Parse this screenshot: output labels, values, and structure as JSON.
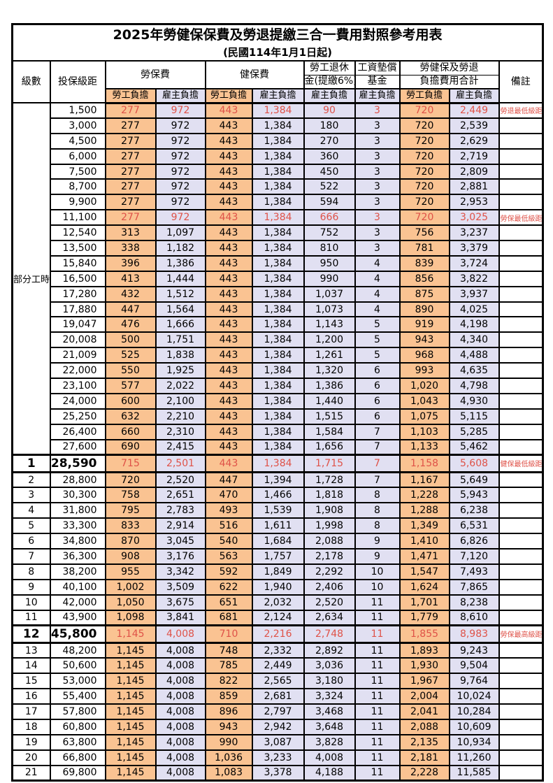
{
  "title": "2025年勞健保保費及勞退提繳三合一費用對照參考用表",
  "subtitle": "(民國114年1月1日起)",
  "columns": {
    "level": "級數",
    "bracket": "投保級距",
    "labor_insurance": "勞保費",
    "health_insurance": "健保費",
    "pension_line1": "勞工退休",
    "pension_line2": "金(提繳6%)",
    "wage_fund_line1": "工資墊償",
    "wage_fund_line2": "基金",
    "total_line1": "勞健保及勞退",
    "total_line2": "負擔費用合計",
    "remark": "備註",
    "employee_share": "勞工負擔",
    "employer_share": "雇主負擔"
  },
  "part_time_label": "部分工時",
  "part_time_rowspan": 23,
  "colors": {
    "employee_bg": "#FAC392",
    "employer_bg": "#E1E0F2",
    "highlight_text": "#DF5248"
  },
  "rows": [
    {
      "level": "",
      "bracket": "1,500",
      "values": [
        "277",
        "972",
        "443",
        "1,384",
        "90",
        "3",
        "720",
        "2,449"
      ],
      "note": "勞退最低級距",
      "highlight": true,
      "major": false
    },
    {
      "level": "",
      "bracket": "3,000",
      "values": [
        "277",
        "972",
        "443",
        "1,384",
        "180",
        "3",
        "720",
        "2,539"
      ],
      "note": "",
      "highlight": false,
      "major": false
    },
    {
      "level": "",
      "bracket": "4,500",
      "values": [
        "277",
        "972",
        "443",
        "1,384",
        "270",
        "3",
        "720",
        "2,629"
      ],
      "note": "",
      "highlight": false,
      "major": false
    },
    {
      "level": "",
      "bracket": "6,000",
      "values": [
        "277",
        "972",
        "443",
        "1,384",
        "360",
        "3",
        "720",
        "2,719"
      ],
      "note": "",
      "highlight": false,
      "major": false
    },
    {
      "level": "",
      "bracket": "7,500",
      "values": [
        "277",
        "972",
        "443",
        "1,384",
        "450",
        "3",
        "720",
        "2,809"
      ],
      "note": "",
      "highlight": false,
      "major": false
    },
    {
      "level": "",
      "bracket": "8,700",
      "values": [
        "277",
        "972",
        "443",
        "1,384",
        "522",
        "3",
        "720",
        "2,881"
      ],
      "note": "",
      "highlight": false,
      "major": false
    },
    {
      "level": "",
      "bracket": "9,900",
      "values": [
        "277",
        "972",
        "443",
        "1,384",
        "594",
        "3",
        "720",
        "2,953"
      ],
      "note": "",
      "highlight": false,
      "major": false
    },
    {
      "level": "",
      "bracket": "11,100",
      "values": [
        "277",
        "972",
        "443",
        "1,384",
        "666",
        "3",
        "720",
        "3,025"
      ],
      "note": "勞保最低級距",
      "highlight": true,
      "major": false
    },
    {
      "level": "",
      "bracket": "12,540",
      "values": [
        "313",
        "1,097",
        "443",
        "1,384",
        "752",
        "3",
        "756",
        "3,237"
      ],
      "note": "",
      "highlight": false,
      "major": false
    },
    {
      "level": "",
      "bracket": "13,500",
      "values": [
        "338",
        "1,182",
        "443",
        "1,384",
        "810",
        "3",
        "781",
        "3,379"
      ],
      "note": "",
      "highlight": false,
      "major": false
    },
    {
      "level": "",
      "bracket": "15,840",
      "values": [
        "396",
        "1,386",
        "443",
        "1,384",
        "950",
        "4",
        "839",
        "3,724"
      ],
      "note": "",
      "highlight": false,
      "major": false
    },
    {
      "level": "",
      "bracket": "16,500",
      "values": [
        "413",
        "1,444",
        "443",
        "1,384",
        "990",
        "4",
        "856",
        "3,822"
      ],
      "note": "",
      "highlight": false,
      "major": false
    },
    {
      "level": "",
      "bracket": "17,280",
      "values": [
        "432",
        "1,512",
        "443",
        "1,384",
        "1,037",
        "4",
        "875",
        "3,937"
      ],
      "note": "",
      "highlight": false,
      "major": false
    },
    {
      "level": "",
      "bracket": "17,880",
      "values": [
        "447",
        "1,564",
        "443",
        "1,384",
        "1,073",
        "4",
        "890",
        "4,025"
      ],
      "note": "",
      "highlight": false,
      "major": false
    },
    {
      "level": "",
      "bracket": "19,047",
      "values": [
        "476",
        "1,666",
        "443",
        "1,384",
        "1,143",
        "5",
        "919",
        "4,198"
      ],
      "note": "",
      "highlight": false,
      "major": false
    },
    {
      "level": "",
      "bracket": "20,008",
      "values": [
        "500",
        "1,751",
        "443",
        "1,384",
        "1,200",
        "5",
        "943",
        "4,340"
      ],
      "note": "",
      "highlight": false,
      "major": false
    },
    {
      "level": "",
      "bracket": "21,009",
      "values": [
        "525",
        "1,838",
        "443",
        "1,384",
        "1,261",
        "5",
        "968",
        "4,488"
      ],
      "note": "",
      "highlight": false,
      "major": false
    },
    {
      "level": "",
      "bracket": "22,000",
      "values": [
        "550",
        "1,925",
        "443",
        "1,384",
        "1,320",
        "6",
        "993",
        "4,635"
      ],
      "note": "",
      "highlight": false,
      "major": false
    },
    {
      "level": "",
      "bracket": "23,100",
      "values": [
        "577",
        "2,022",
        "443",
        "1,384",
        "1,386",
        "6",
        "1,020",
        "4,798"
      ],
      "note": "",
      "highlight": false,
      "major": false
    },
    {
      "level": "",
      "bracket": "24,000",
      "values": [
        "600",
        "2,100",
        "443",
        "1,384",
        "1,440",
        "6",
        "1,043",
        "4,930"
      ],
      "note": "",
      "highlight": false,
      "major": false
    },
    {
      "level": "",
      "bracket": "25,250",
      "values": [
        "632",
        "2,210",
        "443",
        "1,384",
        "1,515",
        "6",
        "1,075",
        "5,115"
      ],
      "note": "",
      "highlight": false,
      "major": false
    },
    {
      "level": "",
      "bracket": "26,400",
      "values": [
        "660",
        "2,310",
        "443",
        "1,384",
        "1,584",
        "7",
        "1,103",
        "5,285"
      ],
      "note": "",
      "highlight": false,
      "major": false
    },
    {
      "level": "",
      "bracket": "27,600",
      "values": [
        "690",
        "2,415",
        "443",
        "1,384",
        "1,656",
        "7",
        "1,133",
        "5,462"
      ],
      "note": "",
      "highlight": false,
      "major": false
    },
    {
      "level": "1",
      "bracket": "28,590",
      "values": [
        "715",
        "2,501",
        "443",
        "1,384",
        "1,715",
        "7",
        "1,158",
        "5,608"
      ],
      "note": "健保最低級距",
      "highlight": true,
      "major": true
    },
    {
      "level": "2",
      "bracket": "28,800",
      "values": [
        "720",
        "2,520",
        "447",
        "1,394",
        "1,728",
        "7",
        "1,167",
        "5,649"
      ],
      "note": "",
      "highlight": false,
      "major": false
    },
    {
      "level": "3",
      "bracket": "30,300",
      "values": [
        "758",
        "2,651",
        "470",
        "1,466",
        "1,818",
        "8",
        "1,228",
        "5,943"
      ],
      "note": "",
      "highlight": false,
      "major": false
    },
    {
      "level": "4",
      "bracket": "31,800",
      "values": [
        "795",
        "2,783",
        "493",
        "1,539",
        "1,908",
        "8",
        "1,288",
        "6,238"
      ],
      "note": "",
      "highlight": false,
      "major": false
    },
    {
      "level": "5",
      "bracket": "33,300",
      "values": [
        "833",
        "2,914",
        "516",
        "1,611",
        "1,998",
        "8",
        "1,349",
        "6,531"
      ],
      "note": "",
      "highlight": false,
      "major": false
    },
    {
      "level": "6",
      "bracket": "34,800",
      "values": [
        "870",
        "3,045",
        "540",
        "1,684",
        "2,088",
        "9",
        "1,410",
        "6,826"
      ],
      "note": "",
      "highlight": false,
      "major": false
    },
    {
      "level": "7",
      "bracket": "36,300",
      "values": [
        "908",
        "3,176",
        "563",
        "1,757",
        "2,178",
        "9",
        "1,471",
        "7,120"
      ],
      "note": "",
      "highlight": false,
      "major": false
    },
    {
      "level": "8",
      "bracket": "38,200",
      "values": [
        "955",
        "3,342",
        "592",
        "1,849",
        "2,292",
        "10",
        "1,547",
        "7,493"
      ],
      "note": "",
      "highlight": false,
      "major": false
    },
    {
      "level": "9",
      "bracket": "40,100",
      "values": [
        "1,002",
        "3,509",
        "622",
        "1,940",
        "2,406",
        "10",
        "1,624",
        "7,865"
      ],
      "note": "",
      "highlight": false,
      "major": false
    },
    {
      "level": "10",
      "bracket": "42,000",
      "values": [
        "1,050",
        "3,675",
        "651",
        "2,032",
        "2,520",
        "11",
        "1,701",
        "8,238"
      ],
      "note": "",
      "highlight": false,
      "major": false
    },
    {
      "level": "11",
      "bracket": "43,900",
      "values": [
        "1,098",
        "3,841",
        "681",
        "2,124",
        "2,634",
        "11",
        "1,779",
        "8,610"
      ],
      "note": "",
      "highlight": false,
      "major": false
    },
    {
      "level": "12",
      "bracket": "45,800",
      "values": [
        "1,145",
        "4,008",
        "710",
        "2,216",
        "2,748",
        "11",
        "1,855",
        "8,983"
      ],
      "note": "勞保最高級距",
      "highlight": true,
      "major": true
    },
    {
      "level": "13",
      "bracket": "48,200",
      "values": [
        "1,145",
        "4,008",
        "748",
        "2,332",
        "2,892",
        "11",
        "1,893",
        "9,243"
      ],
      "note": "",
      "highlight": false,
      "major": false
    },
    {
      "level": "14",
      "bracket": "50,600",
      "values": [
        "1,145",
        "4,008",
        "785",
        "2,449",
        "3,036",
        "11",
        "1,930",
        "9,504"
      ],
      "note": "",
      "highlight": false,
      "major": false
    },
    {
      "level": "15",
      "bracket": "53,000",
      "values": [
        "1,145",
        "4,008",
        "822",
        "2,565",
        "3,180",
        "11",
        "1,967",
        "9,764"
      ],
      "note": "",
      "highlight": false,
      "major": false
    },
    {
      "level": "16",
      "bracket": "55,400",
      "values": [
        "1,145",
        "4,008",
        "859",
        "2,681",
        "3,324",
        "11",
        "2,004",
        "10,024"
      ],
      "note": "",
      "highlight": false,
      "major": false
    },
    {
      "level": "17",
      "bracket": "57,800",
      "values": [
        "1,145",
        "4,008",
        "896",
        "2,797",
        "3,468",
        "11",
        "2,041",
        "10,284"
      ],
      "note": "",
      "highlight": false,
      "major": false
    },
    {
      "level": "18",
      "bracket": "60,800",
      "values": [
        "1,145",
        "4,008",
        "943",
        "2,942",
        "3,648",
        "11",
        "2,088",
        "10,609"
      ],
      "note": "",
      "highlight": false,
      "major": false
    },
    {
      "level": "19",
      "bracket": "63,800",
      "values": [
        "1,145",
        "4,008",
        "990",
        "3,087",
        "3,828",
        "11",
        "2,135",
        "10,934"
      ],
      "note": "",
      "highlight": false,
      "major": false
    },
    {
      "level": "20",
      "bracket": "66,800",
      "values": [
        "1,145",
        "4,008",
        "1,036",
        "3,233",
        "4,008",
        "11",
        "2,181",
        "11,260"
      ],
      "note": "",
      "highlight": false,
      "major": false
    },
    {
      "level": "21",
      "bracket": "69,800",
      "values": [
        "1,145",
        "4,008",
        "1,083",
        "3,378",
        "4,188",
        "11",
        "2,228",
        "11,585"
      ],
      "note": "",
      "highlight": false,
      "major": false
    }
  ]
}
